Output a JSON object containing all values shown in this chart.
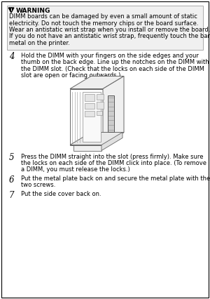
{
  "bg_color": "#ffffff",
  "border_color": "#000000",
  "warning_title": "WARNING",
  "warning_text_lines": [
    "DIMM boards can be damaged by even a small amount of static",
    "electricity. Do not touch the memory chips or the board surface.",
    "Wear an antistatic wrist strap when you install or remove the board.",
    "If you do not have an antistatic wrist strap, frequently touch the bare",
    "metal on the printer."
  ],
  "step4_num": "4",
  "step4_text_lines": [
    "Hold the DIMM with your fingers on the side edges and your",
    "thumb on the back edge. Line up the notches on the DIMM with",
    "the DIMM slot. (Check that the locks on each side of the DIMM",
    "slot are open or facing outwards.)"
  ],
  "step5_num": "5",
  "step5_text_lines": [
    "Press the DIMM straight into the slot (press firmly). Make sure",
    "the locks on each side of the DIMM click into place. (To remove",
    "a DIMM, you must release the locks.)"
  ],
  "step6_num": "6",
  "step6_text_lines": [
    "Put the metal plate back on and secure the metal plate with the",
    "two screws."
  ],
  "step7_num": "7",
  "step7_text_lines": [
    "Put the side cover back on."
  ],
  "font_size_warning_title": 6.5,
  "font_size_body": 6.0,
  "font_size_step_num": 8.5,
  "text_color": "#000000",
  "warning_box_facecolor": "#f0f0f0",
  "warning_box_edgecolor": "#aaaaaa"
}
